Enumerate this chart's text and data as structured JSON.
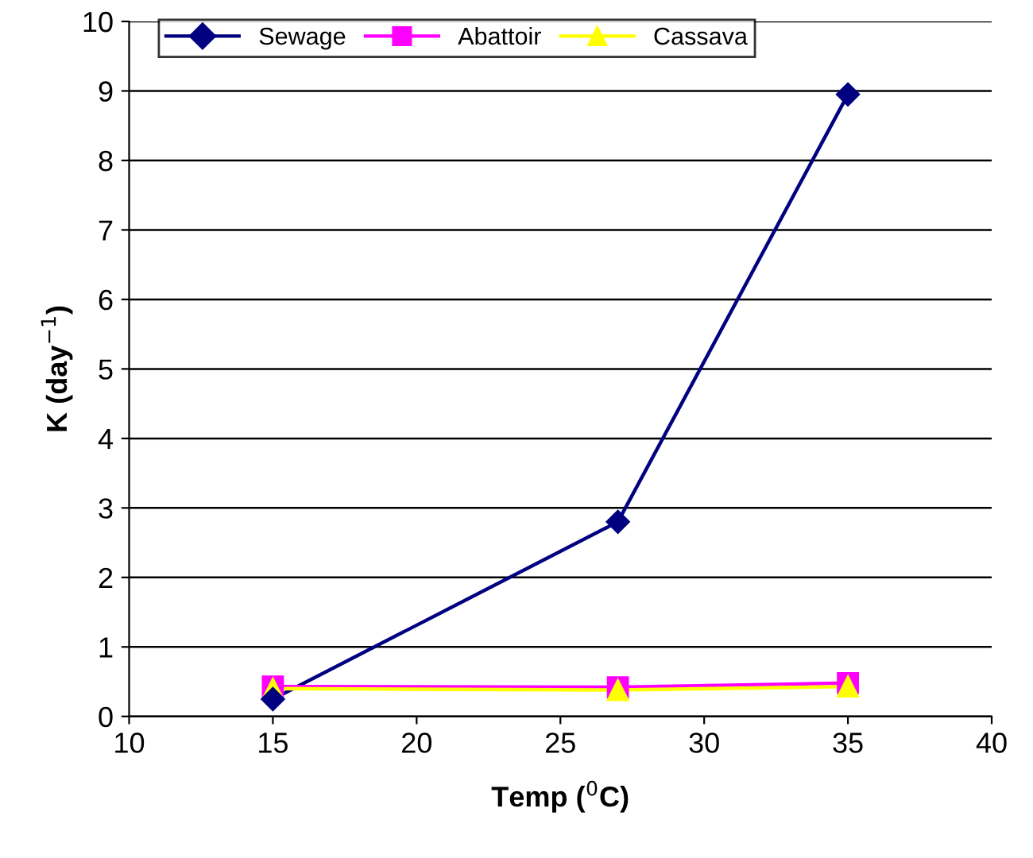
{
  "chart_data": {
    "type": "line",
    "xlabel": "Temp ($^{0}$C)",
    "ylabel": "K (day$^{−1}$)",
    "x": [
      15,
      27,
      35
    ],
    "series": [
      {
        "name": "Sewage",
        "color": "#000080",
        "values": [
          0.25,
          2.8,
          8.95
        ],
        "marker": "diamond"
      },
      {
        "name": "Abattoir",
        "color": "#ff00ff",
        "values": [
          0.43,
          0.42,
          0.48
        ],
        "marker": "square"
      },
      {
        "name": "Cassava",
        "color": "#ffff00",
        "values": [
          0.4,
          0.38,
          0.43
        ],
        "marker": "triangle"
      }
    ],
    "xlim": [
      10,
      40
    ],
    "xticks": [
      10,
      15,
      20,
      25,
      30,
      35,
      40
    ],
    "ylim": [
      0,
      10
    ],
    "yticks": [
      0,
      1,
      2,
      3,
      4,
      5,
      6,
      7,
      8,
      9,
      10
    ],
    "grid": "y",
    "legend": "top",
    "line_style": "solid"
  }
}
